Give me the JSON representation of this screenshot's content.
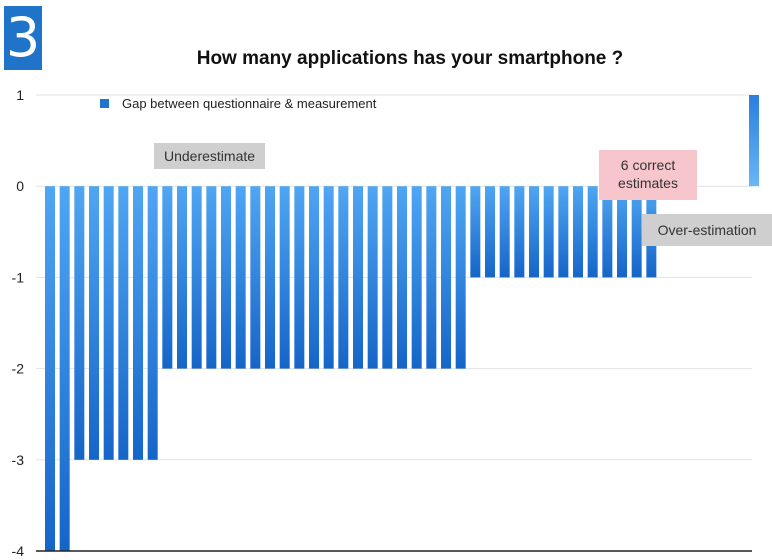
{
  "badge": "3",
  "chart_data": {
    "type": "bar",
    "title": "How many applications has your smartphone ?",
    "xlabel": "",
    "ylabel": "",
    "ylim": [
      -4,
      1
    ],
    "yticks": [
      1,
      0,
      -1,
      -2,
      -3,
      -4
    ],
    "grid": true,
    "legend": {
      "position": "top-left"
    },
    "series": [
      {
        "name": "Gap between questionnaire & measurement",
        "values": [
          -4,
          -4,
          -3,
          -3,
          -3,
          -3,
          -3,
          -3,
          -2,
          -2,
          -2,
          -2,
          -2,
          -2,
          -2,
          -2,
          -2,
          -2,
          -2,
          -2,
          -2,
          -2,
          -2,
          -2,
          -2,
          -2,
          -2,
          -2,
          -2,
          -1,
          -1,
          -1,
          -1,
          -1,
          -1,
          -1,
          -1,
          -1,
          -1,
          -1,
          -1,
          -1,
          0,
          0,
          0,
          0,
          0,
          0,
          1
        ]
      }
    ],
    "annotations": {
      "underestimate": "Underestimate",
      "correct": "6 correct estimates",
      "over": "Over-estimation"
    }
  }
}
